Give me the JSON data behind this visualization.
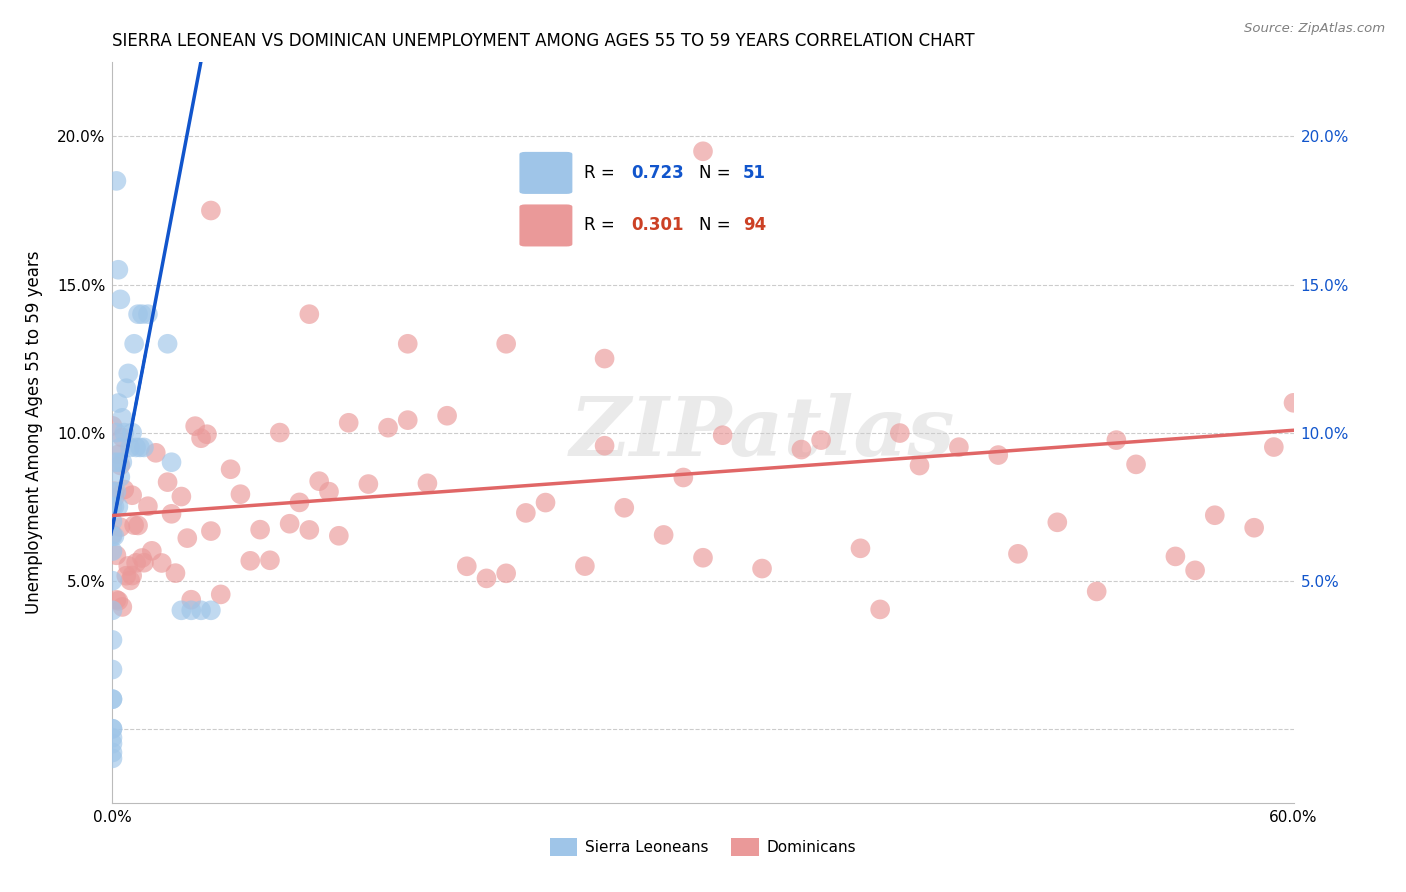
{
  "title": "SIERRA LEONEAN VS DOMINICAN UNEMPLOYMENT AMONG AGES 55 TO 59 YEARS CORRELATION CHART",
  "source": "Source: ZipAtlas.com",
  "ylabel": "Unemployment Among Ages 55 to 59 years",
  "xlim": [
    0.0,
    0.6
  ],
  "ylim": [
    -0.025,
    0.225
  ],
  "xtick_vals": [
    0.0,
    0.1,
    0.2,
    0.3,
    0.4,
    0.5,
    0.6
  ],
  "xtick_labels": [
    "0.0%",
    "",
    "",
    "",
    "",
    "",
    "60.0%"
  ],
  "ytick_vals": [
    0.0,
    0.05,
    0.1,
    0.15,
    0.2
  ],
  "ytick_labels": [
    "",
    "5.0%",
    "10.0%",
    "15.0%",
    "20.0%"
  ],
  "right_ytick_vals": [
    0.05,
    0.1,
    0.15,
    0.2
  ],
  "right_ytick_labels": [
    "5.0%",
    "10.0%",
    "15.0%",
    "20.0%"
  ],
  "sierra_color": "#9fc5e8",
  "dominican_color": "#ea9999",
  "sierra_trend_color": "#1155cc",
  "dominican_trend_color": "#e06666",
  "sierra_R": 0.723,
  "sierra_N": 51,
  "dominican_R": 0.301,
  "dominican_N": 94,
  "legend_R_color": "#1155cc",
  "legend_R2_color": "#cc4125",
  "watermark": "ZIPatlas",
  "background_color": "#ffffff",
  "grid_color": "#cccccc",
  "sl_trend_intercept": 0.068,
  "sl_trend_slope": 3.5,
  "dom_trend_intercept": 0.072,
  "dom_trend_slope": 0.048
}
